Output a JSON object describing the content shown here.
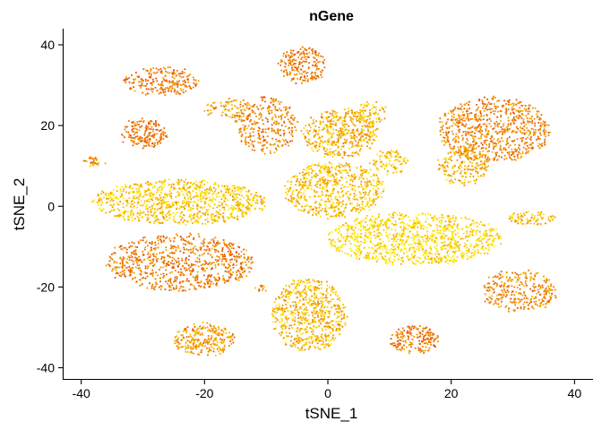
{
  "chart_data": {
    "type": "scatter",
    "title": "nGene",
    "xlabel": "tSNE_1",
    "ylabel": "tSNE_2",
    "xlim": [
      -43,
      43
    ],
    "ylim": [
      -43,
      44
    ],
    "xticks": [
      -40,
      -20,
      0,
      20,
      40
    ],
    "yticks": [
      -40,
      -20,
      0,
      20,
      40
    ],
    "xtick_labels": [
      "-40",
      "-20",
      "0",
      "20",
      "40"
    ],
    "ytick_labels": [
      "-40",
      "-20",
      "0",
      "20",
      "40"
    ],
    "grid": false,
    "legend": "none",
    "color_scale": {
      "low": "#ffee00",
      "high": "#e8540a"
    },
    "clusters": [
      {
        "cx": -24,
        "cy": 1,
        "rx": 14,
        "ry": 5.5,
        "n": 900,
        "intensity": 0.25
      },
      {
        "cx": -24,
        "cy": -14,
        "rx": 12,
        "ry": 7,
        "n": 800,
        "intensity": 0.75
      },
      {
        "cx": 14,
        "cy": -8,
        "rx": 14,
        "ry": 6.5,
        "n": 1000,
        "intensity": 0.12
      },
      {
        "cx": 1,
        "cy": 4,
        "rx": 8,
        "ry": 7,
        "n": 600,
        "intensity": 0.3
      },
      {
        "cx": 2,
        "cy": 18,
        "rx": 6,
        "ry": 6,
        "n": 450,
        "intensity": 0.4
      },
      {
        "cx": 27,
        "cy": 19,
        "rx": 9,
        "ry": 8,
        "n": 750,
        "intensity": 0.7
      },
      {
        "cx": 22,
        "cy": 10,
        "rx": 4,
        "ry": 5,
        "n": 200,
        "intensity": 0.4
      },
      {
        "cx": -3,
        "cy": -27,
        "rx": 6,
        "ry": 9,
        "n": 650,
        "intensity": 0.35
      },
      {
        "cx": 31,
        "cy": -21,
        "rx": 6,
        "ry": 5,
        "n": 300,
        "intensity": 0.65
      },
      {
        "cx": 33,
        "cy": -3,
        "rx": 4,
        "ry": 1.5,
        "n": 80,
        "intensity": 0.35
      },
      {
        "cx": -20,
        "cy": -33,
        "rx": 5,
        "ry": 4,
        "n": 250,
        "intensity": 0.55
      },
      {
        "cx": 14,
        "cy": -33,
        "rx": 4,
        "ry": 3.5,
        "n": 180,
        "intensity": 0.75
      },
      {
        "cx": -10,
        "cy": 20,
        "rx": 5,
        "ry": 7,
        "n": 300,
        "intensity": 0.7
      },
      {
        "cx": -30,
        "cy": 18,
        "rx": 4,
        "ry": 3.5,
        "n": 180,
        "intensity": 0.8
      },
      {
        "cx": -27,
        "cy": 31,
        "rx": 6,
        "ry": 3.5,
        "n": 220,
        "intensity": 0.75
      },
      {
        "cx": -4,
        "cy": 35,
        "rx": 4,
        "ry": 4.5,
        "n": 200,
        "intensity": 0.75
      },
      {
        "cx": 10,
        "cy": 11,
        "rx": 3,
        "ry": 3,
        "n": 100,
        "intensity": 0.25
      },
      {
        "cx": 7,
        "cy": 23,
        "rx": 2.5,
        "ry": 3,
        "n": 80,
        "intensity": 0.3
      },
      {
        "cx": -38,
        "cy": 11,
        "rx": 1.5,
        "ry": 1.2,
        "n": 30,
        "intensity": 0.6
      },
      {
        "cx": -16,
        "cy": 24,
        "rx": 4,
        "ry": 2.5,
        "n": 80,
        "intensity": 0.55
      },
      {
        "cx": -11,
        "cy": -20,
        "rx": 1,
        "ry": 1,
        "n": 12,
        "intensity": 0.6
      }
    ]
  }
}
